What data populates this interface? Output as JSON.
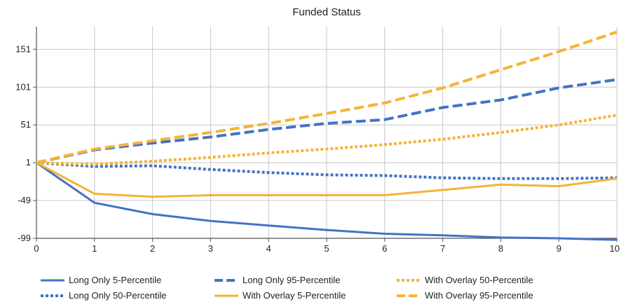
{
  "chart_data": {
    "type": "line",
    "title": "Funded Status",
    "xlabel": "",
    "ylabel": "",
    "x": [
      0,
      1,
      2,
      3,
      4,
      5,
      6,
      7,
      8,
      9,
      10
    ],
    "xlim": [
      0,
      10
    ],
    "ylim": [
      -99,
      181
    ],
    "yticks": [
      151,
      101,
      51,
      1,
      -49,
      -99
    ],
    "xticks": [
      0,
      1,
      2,
      3,
      4,
      5,
      6,
      7,
      8,
      9,
      10
    ],
    "grid": true,
    "legend_position": "bottom",
    "series": [
      {
        "name": "Long Only 5-Percentile",
        "color": "#4472c4",
        "style": "solid",
        "values": [
          1,
          -52,
          -67,
          -76,
          -82,
          -88,
          -93,
          -95,
          -98,
          -99,
          -101
        ]
      },
      {
        "name": "Long Only 50-Percentile",
        "color": "#4472c4",
        "style": "dotted",
        "values": [
          1,
          -4,
          -3,
          -8,
          -12,
          -15,
          -16,
          -19,
          -20,
          -20,
          -19
        ]
      },
      {
        "name": "Long Only 95-Percentile",
        "color": "#4472c4",
        "style": "dashed",
        "values": [
          1,
          18,
          27,
          35,
          45,
          53,
          58,
          74,
          84,
          100,
          111
        ]
      },
      {
        "name": "With Overlay 5-Percentile",
        "color": "#f5b335",
        "style": "solid",
        "values": [
          1,
          -40,
          -44,
          -42,
          -42,
          -42,
          -42,
          -35,
          -28,
          -30,
          -20
        ]
      },
      {
        "name": "With Overlay 50-Percentile",
        "color": "#f5b335",
        "style": "dotted",
        "values": [
          1,
          -1,
          3,
          8,
          14,
          19,
          25,
          32,
          41,
          51,
          64
        ]
      },
      {
        "name": "With Overlay 95-Percentile",
        "color": "#f5b335",
        "style": "dashed",
        "values": [
          1,
          19,
          30,
          41,
          53,
          66,
          80,
          100,
          124,
          148,
          174
        ]
      }
    ]
  }
}
